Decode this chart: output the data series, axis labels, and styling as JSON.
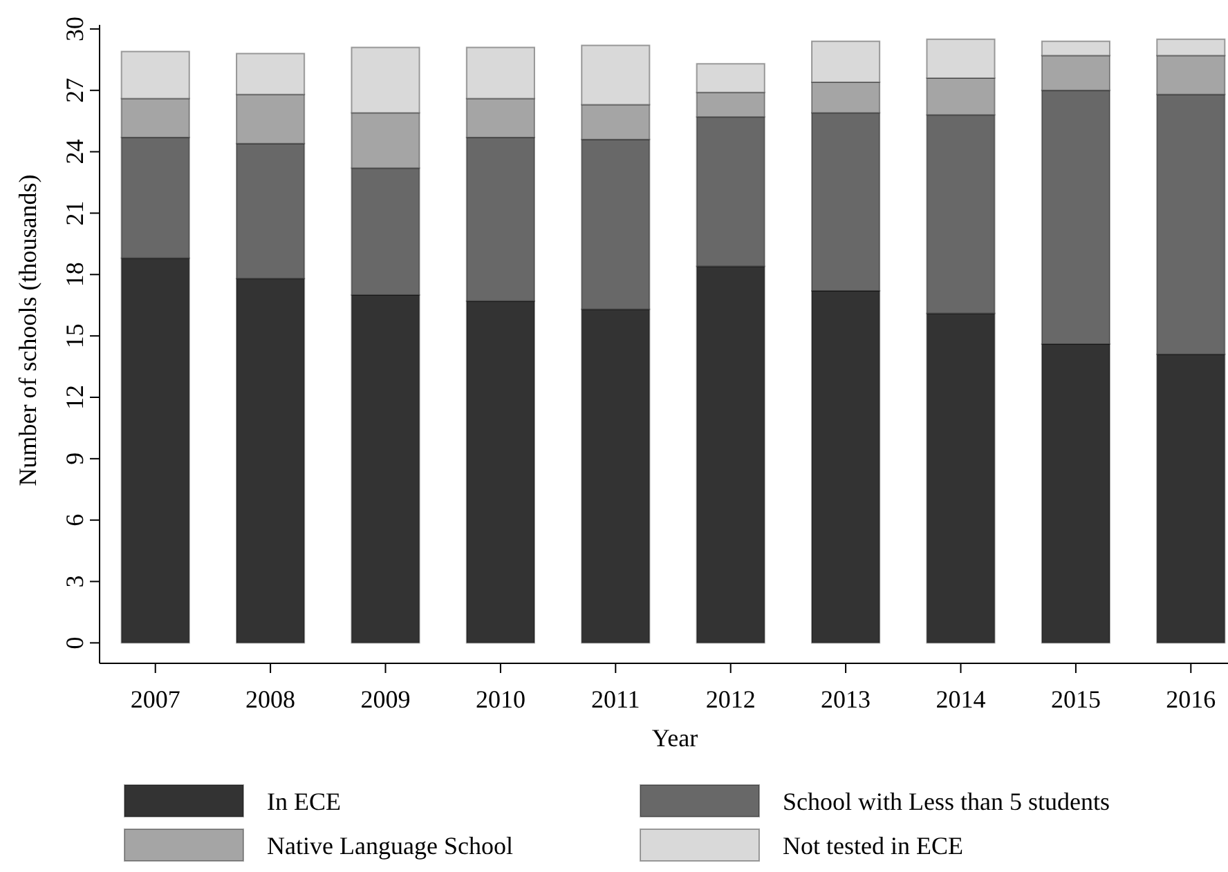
{
  "chart_data": {
    "type": "bar",
    "stacked": true,
    "xlabel": "Year",
    "ylabel": "Number of schools (thousands)",
    "categories": [
      "2007",
      "2008",
      "2009",
      "2010",
      "2011",
      "2012",
      "2013",
      "2014",
      "2015",
      "2016"
    ],
    "series": [
      {
        "name": "In ECE",
        "color": "#333333",
        "values": [
          18.8,
          17.8,
          17.0,
          16.7,
          16.3,
          18.4,
          17.2,
          16.1,
          14.6,
          14.1
        ]
      },
      {
        "name": "School with Less than 5 students",
        "color": "#686868",
        "values": [
          5.9,
          6.6,
          6.2,
          8.0,
          8.3,
          7.3,
          8.7,
          9.7,
          12.4,
          12.7
        ]
      },
      {
        "name": "Native Language School",
        "color": "#a5a5a5",
        "values": [
          1.9,
          2.4,
          2.7,
          1.9,
          1.7,
          1.2,
          1.5,
          1.8,
          1.7,
          1.9
        ]
      },
      {
        "name": "Not tested in ECE",
        "color": "#d9d9d9",
        "values": [
          2.3,
          2.0,
          3.2,
          2.5,
          2.9,
          1.4,
          2.0,
          1.9,
          0.7,
          0.8
        ]
      }
    ],
    "ylim": [
      -1,
      30.2
    ],
    "yticks": [
      0,
      3,
      6,
      9,
      12,
      15,
      18,
      21,
      24,
      27,
      30
    ],
    "grid": false,
    "legend": "bottom"
  }
}
